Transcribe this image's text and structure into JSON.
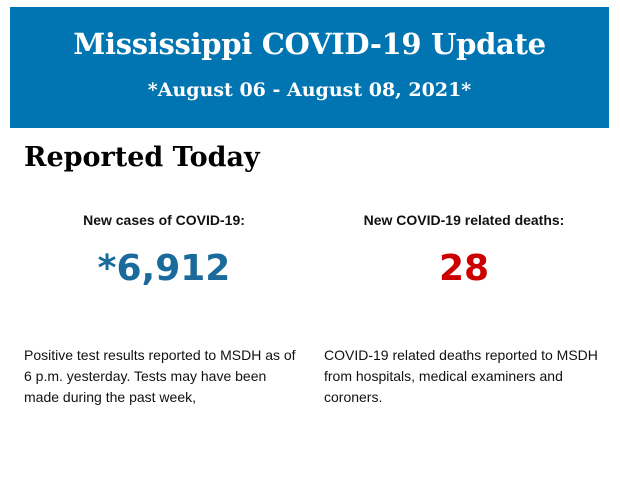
{
  "header": {
    "title": "Mississippi COVID-19 Update",
    "date_range": "*August 06 - August 08, 2021*",
    "background_color": "#0075b2"
  },
  "section_title": "Reported Today",
  "cases": {
    "label": "New cases of COVID-19:",
    "value": "*6,912",
    "color": "#1a6a9c",
    "description": "Positive test results reported to MSDH as of 6 p.m. yesterday. Tests may have been made during the past week,"
  },
  "deaths": {
    "label": "New COVID-19 related deaths:",
    "value": "28",
    "color": "#cc0000",
    "description": "COVID-19 related deaths reported to MSDH from hospitals, medical examiners and coroners."
  }
}
